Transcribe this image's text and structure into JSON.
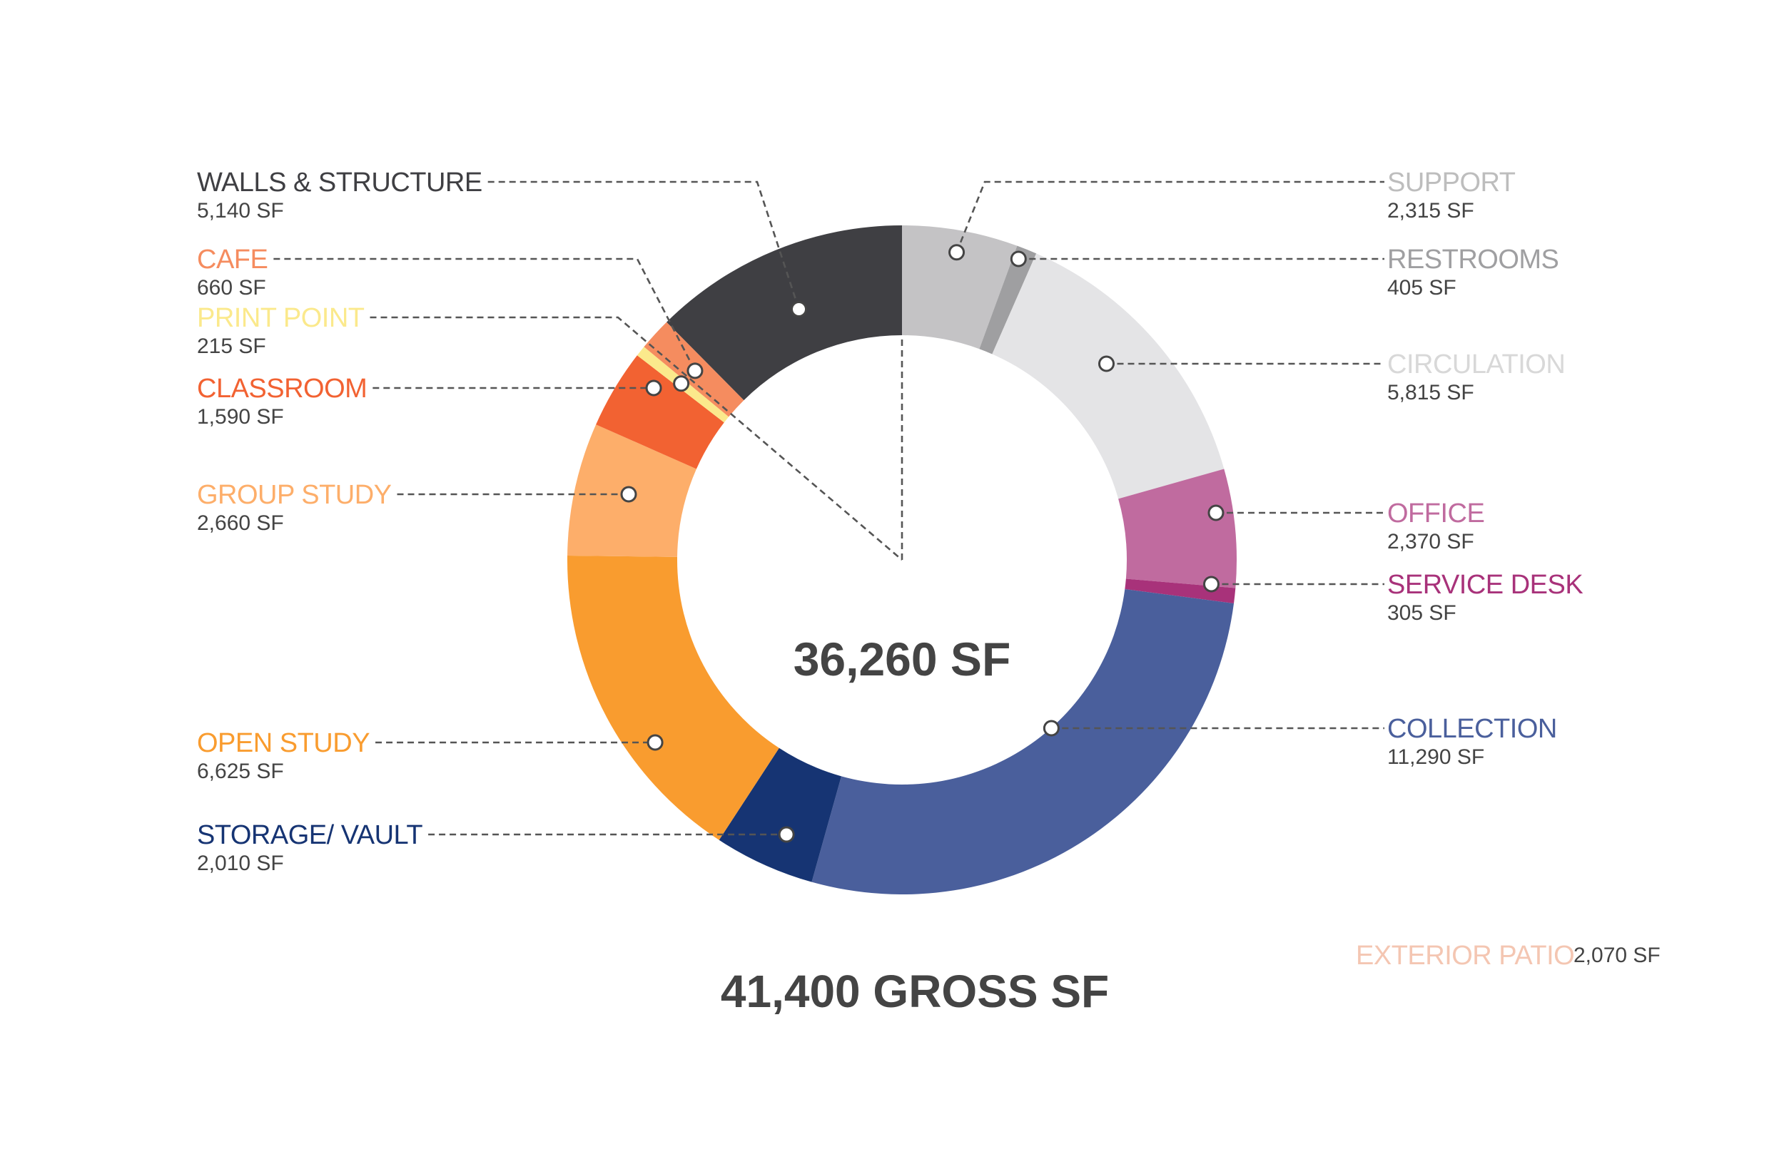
{
  "chart_data": {
    "type": "pie",
    "variant": "donut",
    "unit": "SF",
    "total_label": "36,260 SF",
    "gross_label": "41,400 GROSS SF",
    "slices": [
      {
        "key": "support",
        "label": "SUPPORT",
        "value": 2315,
        "value_label": "2,315 SF",
        "color": "#c4c3c5",
        "label_color": "#bdbdbd"
      },
      {
        "key": "restrooms",
        "label": "RESTROOMS",
        "value": 405,
        "value_label": "405 SF",
        "color": "#9f9fa1",
        "label_color": "#9f9fa1"
      },
      {
        "key": "circulation",
        "label": "CIRCULATION",
        "value": 5815,
        "value_label": "5,815 SF",
        "color": "#e4e4e6",
        "label_color": "#d8d8d8"
      },
      {
        "key": "office",
        "label": "OFFICE",
        "value": 2370,
        "value_label": "2,370 SF",
        "color": "#c06b9f",
        "label_color": "#c06b9f"
      },
      {
        "key": "service-desk",
        "label": "SERVICE DESK",
        "value": 305,
        "value_label": "305 SF",
        "color": "#a8327a",
        "label_color": "#a8327a"
      },
      {
        "key": "collection",
        "label": "COLLECTION",
        "value": 11290,
        "value_label": "11,290 SF",
        "color": "#4a5f9c",
        "label_color": "#4a5f9c"
      },
      {
        "key": "storage-vault",
        "label": "STORAGE/ VAULT",
        "value": 2010,
        "value_label": "2,010 SF",
        "color": "#163473",
        "label_color": "#163473"
      },
      {
        "key": "open-study",
        "label": "OPEN STUDY",
        "value": 6625,
        "value_label": "6,625 SF",
        "color": "#f99c2f",
        "label_color": "#f99c2f"
      },
      {
        "key": "group-study",
        "label": "GROUP STUDY",
        "value": 2660,
        "value_label": "2,660 SF",
        "color": "#fdae6a",
        "label_color": "#fdae6a"
      },
      {
        "key": "classroom",
        "label": "CLASSROOM",
        "value": 1590,
        "value_label": "1,590 SF",
        "color": "#f26232",
        "label_color": "#f26232"
      },
      {
        "key": "print-point",
        "label": "PRINT POINT",
        "value": 215,
        "value_label": "215 SF",
        "color": "#fbe98c",
        "label_color": "#fbe98c"
      },
      {
        "key": "cafe",
        "label": "CAFE",
        "value": 660,
        "value_label": "660 SF",
        "color": "#f58c5f",
        "label_color": "#f58c5f"
      },
      {
        "key": "walls-structure",
        "label": "WALLS & STRUCTURE",
        "value": 5140,
        "value_label": "5,140 SF",
        "color": "#3f3f43",
        "label_color": "#3f3f43"
      }
    ],
    "extra_item": {
      "label": "EXTERIOR PATIO",
      "value": 2070,
      "value_label": "2,070 SF",
      "label_color": "#f4c6b2"
    }
  }
}
